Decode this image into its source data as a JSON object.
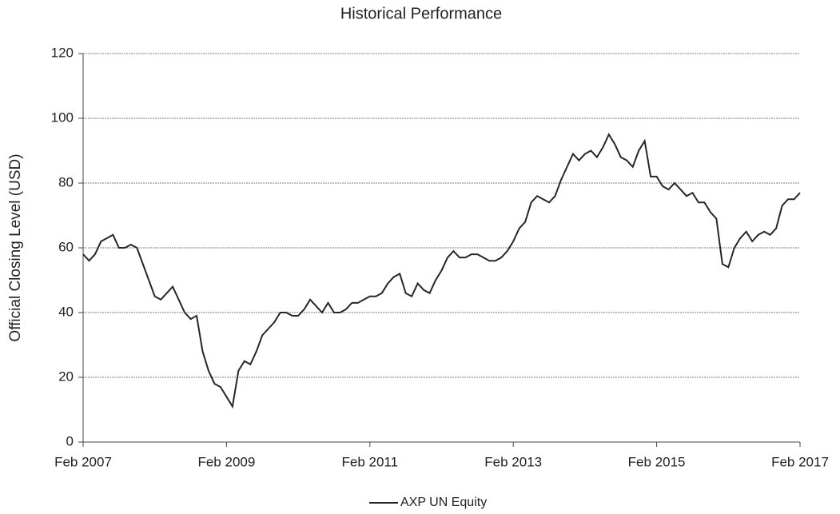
{
  "chart_data": {
    "type": "line",
    "title": "Historical Performance",
    "y_label": "Official Closing Level (USD)",
    "x": [
      "2007-02",
      "2007-03",
      "2007-04",
      "2007-05",
      "2007-06",
      "2007-07",
      "2007-08",
      "2007-09",
      "2007-10",
      "2007-11",
      "2007-12",
      "2008-01",
      "2008-02",
      "2008-03",
      "2008-04",
      "2008-05",
      "2008-06",
      "2008-07",
      "2008-08",
      "2008-09",
      "2008-10",
      "2008-11",
      "2008-12",
      "2009-01",
      "2009-02",
      "2009-03",
      "2009-04",
      "2009-05",
      "2009-06",
      "2009-07",
      "2009-08",
      "2009-09",
      "2009-10",
      "2009-11",
      "2009-12",
      "2010-01",
      "2010-02",
      "2010-03",
      "2010-04",
      "2010-05",
      "2010-06",
      "2010-07",
      "2010-08",
      "2010-09",
      "2010-10",
      "2010-11",
      "2010-12",
      "2011-01",
      "2011-02",
      "2011-03",
      "2011-04",
      "2011-05",
      "2011-06",
      "2011-07",
      "2011-08",
      "2011-09",
      "2011-10",
      "2011-11",
      "2011-12",
      "2012-01",
      "2012-02",
      "2012-03",
      "2012-04",
      "2012-05",
      "2012-06",
      "2012-07",
      "2012-08",
      "2012-09",
      "2012-10",
      "2012-11",
      "2012-12",
      "2013-01",
      "2013-02",
      "2013-03",
      "2013-04",
      "2013-05",
      "2013-06",
      "2013-07",
      "2013-08",
      "2013-09",
      "2013-10",
      "2013-11",
      "2013-12",
      "2014-01",
      "2014-02",
      "2014-03",
      "2014-04",
      "2014-05",
      "2014-06",
      "2014-07",
      "2014-08",
      "2014-09",
      "2014-10",
      "2014-11",
      "2014-12",
      "2015-01",
      "2015-02",
      "2015-03",
      "2015-04",
      "2015-05",
      "2015-06",
      "2015-07",
      "2015-08",
      "2015-09",
      "2015-10",
      "2015-11",
      "2015-12",
      "2016-01",
      "2016-02",
      "2016-03",
      "2016-04",
      "2016-05",
      "2016-06",
      "2016-07",
      "2016-08",
      "2016-09",
      "2016-10",
      "2016-11",
      "2016-12",
      "2017-01",
      "2017-02"
    ],
    "series": [
      {
        "name": "AXP UN Equity",
        "color": "#262626",
        "values": [
          58,
          56,
          58,
          62,
          63,
          64,
          60,
          60,
          61,
          60,
          55,
          50,
          45,
          44,
          46,
          48,
          44,
          40,
          38,
          39,
          28,
          22,
          18,
          17,
          14,
          11,
          22,
          25,
          24,
          28,
          33,
          35,
          37,
          40,
          40,
          39,
          39,
          41,
          44,
          42,
          40,
          43,
          40,
          40,
          41,
          43,
          43,
          44,
          45,
          45,
          46,
          49,
          51,
          52,
          46,
          45,
          49,
          47,
          46,
          50,
          53,
          57,
          59,
          57,
          57,
          58,
          58,
          57,
          56,
          56,
          57,
          59,
          62,
          66,
          68,
          74,
          76,
          75,
          74,
          76,
          81,
          85,
          89,
          87,
          89,
          90,
          88,
          91,
          95,
          92,
          88,
          87,
          85,
          90,
          93,
          82,
          82,
          79,
          78,
          80,
          78,
          76,
          77,
          74,
          74,
          71,
          69,
          55,
          54,
          60,
          63,
          65,
          62,
          64,
          65,
          64,
          66,
          73,
          75,
          75,
          77
        ]
      }
    ],
    "xlim": [
      "2007-02",
      "2017-02"
    ],
    "xticks": [
      {
        "value": "2007-02",
        "label": "Feb 2007"
      },
      {
        "value": "2009-02",
        "label": "Feb 2009"
      },
      {
        "value": "2011-02",
        "label": "Feb 2011"
      },
      {
        "value": "2013-02",
        "label": "Feb 2013"
      },
      {
        "value": "2015-02",
        "label": "Feb 2015"
      },
      {
        "value": "2017-02",
        "label": "Feb 2017"
      }
    ],
    "ylim": [
      0,
      120
    ],
    "yticks": [
      0,
      20,
      40,
      60,
      80,
      100,
      120
    ],
    "grid": true,
    "legend": "bottom"
  }
}
